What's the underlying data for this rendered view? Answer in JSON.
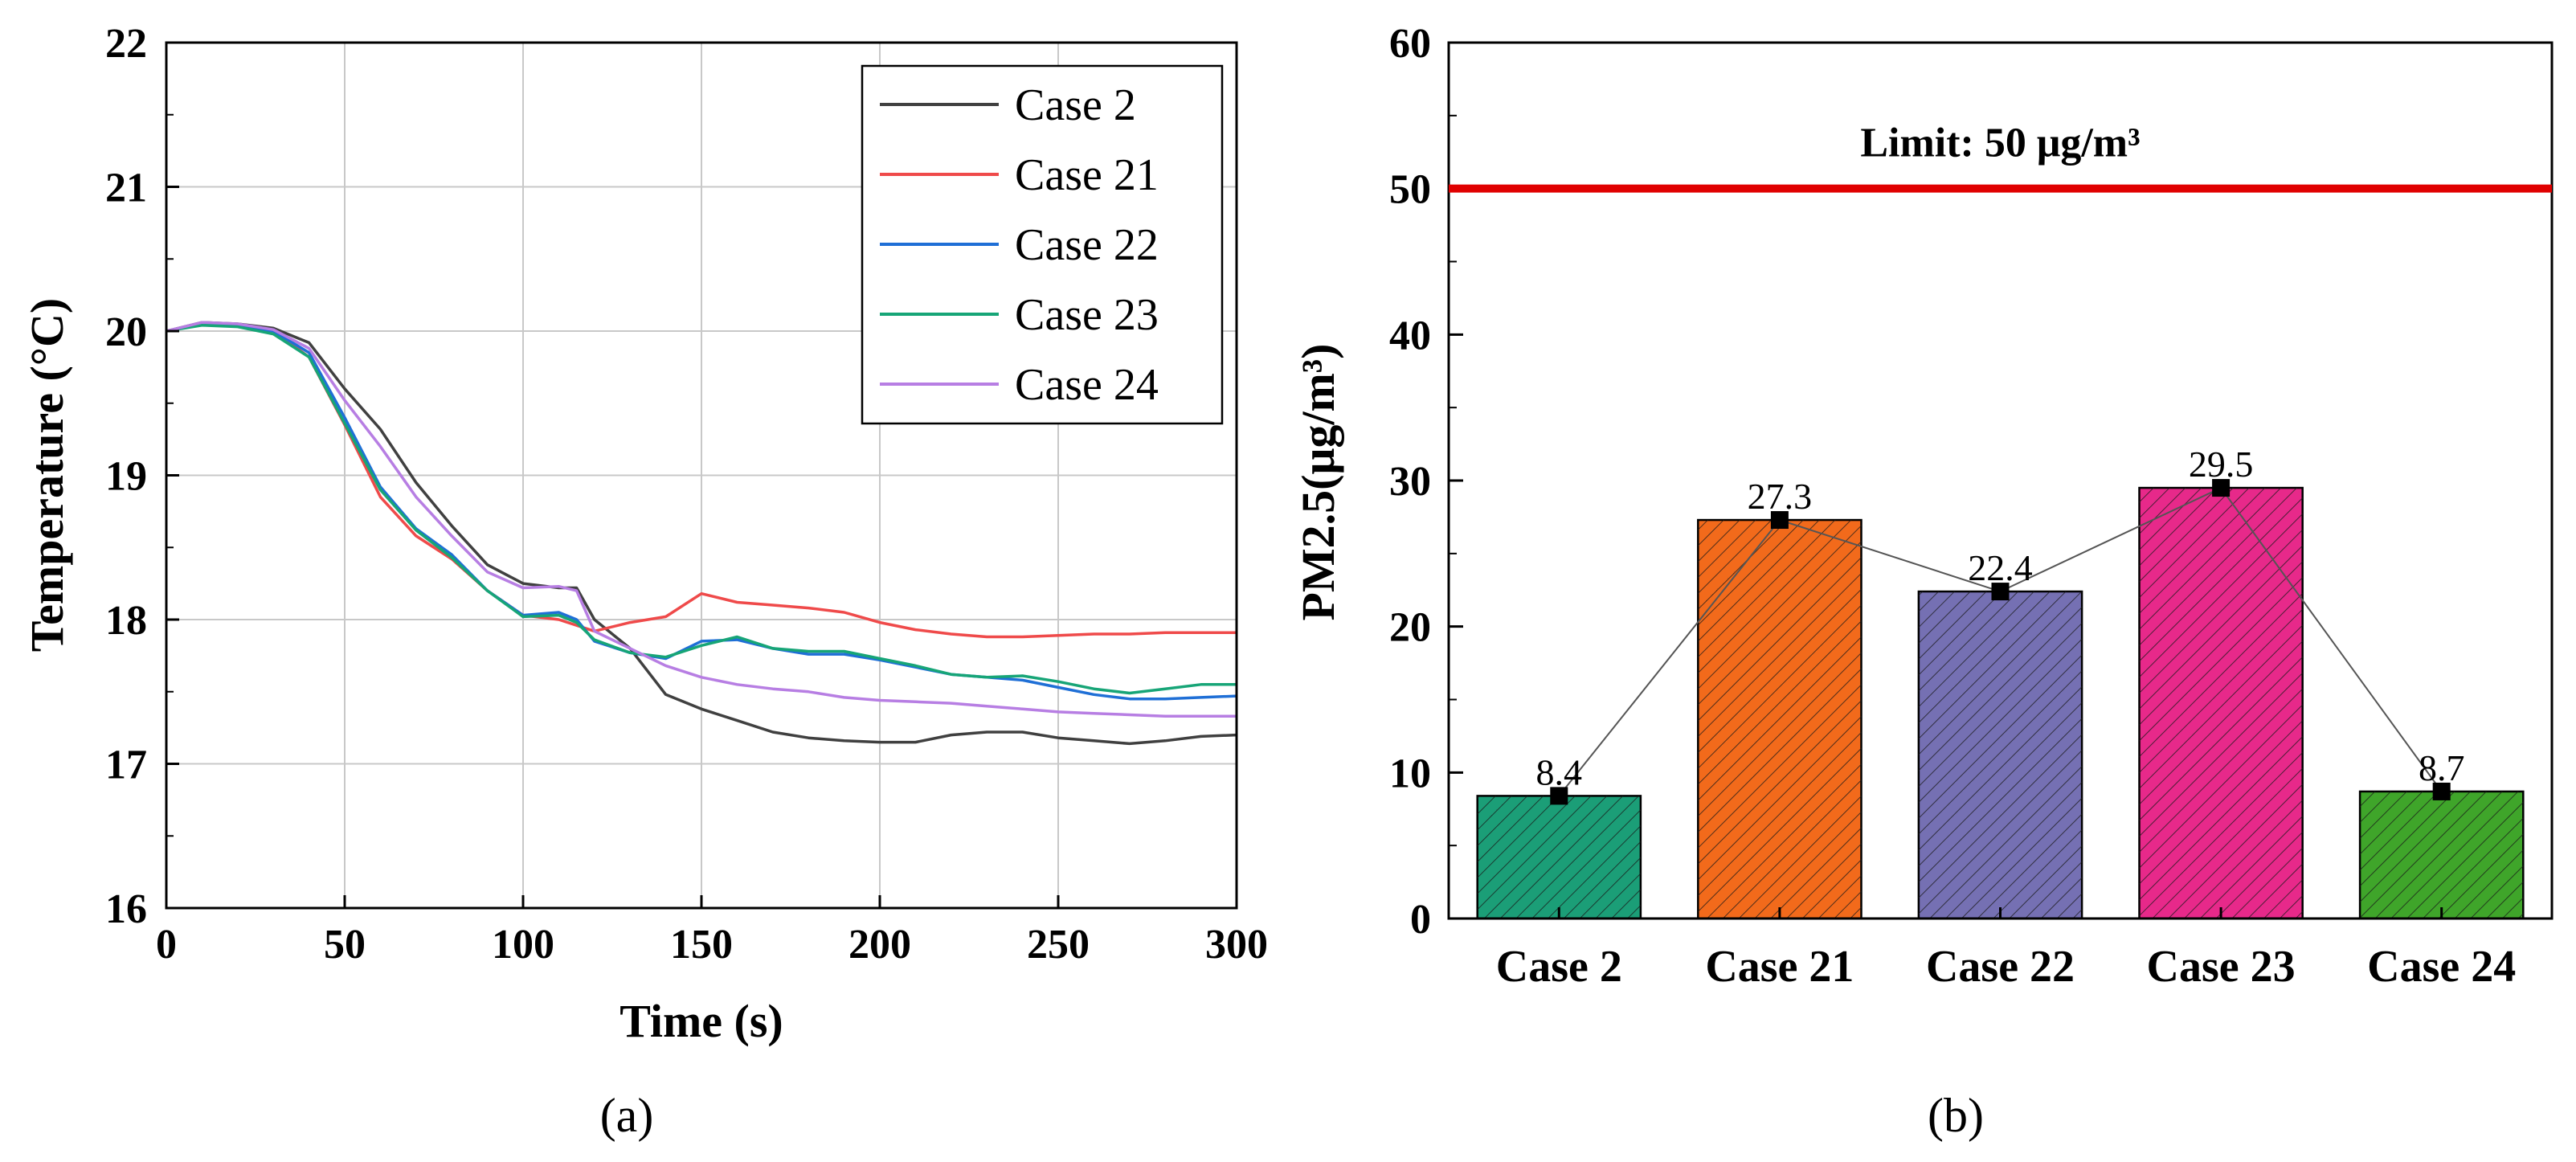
{
  "chart_data": [
    {
      "panel_label": "(a)",
      "type": "line",
      "xlabel": "Time (s)",
      "ylabel": "Temperature (°C)",
      "xlim": [
        0,
        300
      ],
      "ylim": [
        16,
        22
      ],
      "x_ticks": [
        "0",
        "50",
        "100",
        "150",
        "200",
        "250",
        "300"
      ],
      "y_ticks": [
        "16",
        "17",
        "18",
        "19",
        "20",
        "21",
        "22"
      ],
      "grid": true,
      "legend_position": "top-right",
      "series": [
        {
          "name": "Case 2",
          "color": "#404040",
          "points": [
            [
              0,
              20.0
            ],
            [
              10,
              20.06
            ],
            [
              20,
              20.05
            ],
            [
              30,
              20.02
            ],
            [
              40,
              19.92
            ],
            [
              50,
              19.6
            ],
            [
              60,
              19.32
            ],
            [
              70,
              18.95
            ],
            [
              80,
              18.65
            ],
            [
              90,
              18.38
            ],
            [
              100,
              18.25
            ],
            [
              110,
              18.22
            ],
            [
              115,
              18.22
            ],
            [
              120,
              18.0
            ],
            [
              130,
              17.8
            ],
            [
              140,
              17.48
            ],
            [
              150,
              17.38
            ],
            [
              160,
              17.3
            ],
            [
              170,
              17.22
            ],
            [
              180,
              17.18
            ],
            [
              190,
              17.16
            ],
            [
              200,
              17.15
            ],
            [
              210,
              17.15
            ],
            [
              220,
              17.2
            ],
            [
              230,
              17.22
            ],
            [
              240,
              17.22
            ],
            [
              250,
              17.18
            ],
            [
              260,
              17.16
            ],
            [
              270,
              17.14
            ],
            [
              280,
              17.16
            ],
            [
              290,
              17.19
            ],
            [
              300,
              17.2
            ]
          ]
        },
        {
          "name": "Case 21",
          "color": "#ef4a4a",
          "points": [
            [
              0,
              20.0
            ],
            [
              10,
              20.05
            ],
            [
              20,
              20.04
            ],
            [
              30,
              20.0
            ],
            [
              40,
              19.82
            ],
            [
              50,
              19.35
            ],
            [
              60,
              18.85
            ],
            [
              70,
              18.58
            ],
            [
              80,
              18.42
            ],
            [
              90,
              18.2
            ],
            [
              100,
              18.03
            ],
            [
              110,
              18.0
            ],
            [
              120,
              17.92
            ],
            [
              130,
              17.98
            ],
            [
              140,
              18.02
            ],
            [
              150,
              18.18
            ],
            [
              160,
              18.12
            ],
            [
              170,
              18.1
            ],
            [
              180,
              18.08
            ],
            [
              190,
              18.05
            ],
            [
              200,
              17.98
            ],
            [
              210,
              17.93
            ],
            [
              220,
              17.9
            ],
            [
              230,
              17.88
            ],
            [
              240,
              17.88
            ],
            [
              250,
              17.89
            ],
            [
              260,
              17.9
            ],
            [
              270,
              17.9
            ],
            [
              280,
              17.91
            ],
            [
              290,
              17.91
            ],
            [
              300,
              17.91
            ]
          ]
        },
        {
          "name": "Case 22",
          "color": "#1f6fd6",
          "points": [
            [
              0,
              20.0
            ],
            [
              10,
              20.05
            ],
            [
              20,
              20.04
            ],
            [
              30,
              20.0
            ],
            [
              40,
              19.85
            ],
            [
              50,
              19.4
            ],
            [
              60,
              18.92
            ],
            [
              70,
              18.63
            ],
            [
              80,
              18.45
            ],
            [
              90,
              18.2
            ],
            [
              100,
              18.03
            ],
            [
              110,
              18.05
            ],
            [
              115,
              18.0
            ],
            [
              120,
              17.85
            ],
            [
              130,
              17.77
            ],
            [
              140,
              17.73
            ],
            [
              150,
              17.85
            ],
            [
              160,
              17.86
            ],
            [
              170,
              17.8
            ],
            [
              180,
              17.76
            ],
            [
              190,
              17.76
            ],
            [
              200,
              17.72
            ],
            [
              210,
              17.67
            ],
            [
              220,
              17.62
            ],
            [
              230,
              17.6
            ],
            [
              240,
              17.58
            ],
            [
              250,
              17.53
            ],
            [
              260,
              17.48
            ],
            [
              270,
              17.45
            ],
            [
              280,
              17.45
            ],
            [
              290,
              17.46
            ],
            [
              300,
              17.47
            ]
          ]
        },
        {
          "name": "Case 23",
          "color": "#17a577",
          "points": [
            [
              0,
              20.0
            ],
            [
              10,
              20.04
            ],
            [
              20,
              20.03
            ],
            [
              30,
              19.98
            ],
            [
              40,
              19.82
            ],
            [
              50,
              19.36
            ],
            [
              60,
              18.9
            ],
            [
              70,
              18.62
            ],
            [
              80,
              18.43
            ],
            [
              90,
              18.2
            ],
            [
              100,
              18.02
            ],
            [
              110,
              18.03
            ],
            [
              115,
              17.98
            ],
            [
              120,
              17.86
            ],
            [
              130,
              17.77
            ],
            [
              140,
              17.74
            ],
            [
              150,
              17.82
            ],
            [
              160,
              17.88
            ],
            [
              170,
              17.8
            ],
            [
              180,
              17.78
            ],
            [
              190,
              17.78
            ],
            [
              200,
              17.73
            ],
            [
              210,
              17.68
            ],
            [
              220,
              17.62
            ],
            [
              230,
              17.6
            ],
            [
              240,
              17.61
            ],
            [
              250,
              17.57
            ],
            [
              260,
              17.52
            ],
            [
              270,
              17.49
            ],
            [
              280,
              17.52
            ],
            [
              290,
              17.55
            ],
            [
              300,
              17.55
            ]
          ]
        },
        {
          "name": "Case 24",
          "color": "#b77ee3",
          "points": [
            [
              0,
              20.0
            ],
            [
              10,
              20.06
            ],
            [
              20,
              20.05
            ],
            [
              30,
              20.01
            ],
            [
              40,
              19.88
            ],
            [
              50,
              19.52
            ],
            [
              60,
              19.2
            ],
            [
              70,
              18.85
            ],
            [
              80,
              18.58
            ],
            [
              90,
              18.33
            ],
            [
              100,
              18.22
            ],
            [
              110,
              18.23
            ],
            [
              115,
              18.2
            ],
            [
              120,
              17.92
            ],
            [
              130,
              17.8
            ],
            [
              140,
              17.68
            ],
            [
              150,
              17.6
            ],
            [
              160,
              17.55
            ],
            [
              170,
              17.52
            ],
            [
              180,
              17.5
            ],
            [
              190,
              17.46
            ],
            [
              200,
              17.44
            ],
            [
              210,
              17.43
            ],
            [
              220,
              17.42
            ],
            [
              230,
              17.4
            ],
            [
              240,
              17.38
            ],
            [
              250,
              17.36
            ],
            [
              260,
              17.35
            ],
            [
              270,
              17.34
            ],
            [
              280,
              17.33
            ],
            [
              290,
              17.33
            ],
            [
              300,
              17.33
            ]
          ]
        }
      ]
    },
    {
      "panel_label": "(b)",
      "type": "bar",
      "xlabel": "",
      "ylabel": "PM2.5(μg/m³)",
      "ylim": [
        0,
        60
      ],
      "y_ticks": [
        "0",
        "10",
        "20",
        "30",
        "40",
        "50",
        "60"
      ],
      "categories": [
        "Case 2",
        "Case 21",
        "Case 22",
        "Case 23",
        "Case 24"
      ],
      "values": [
        8.4,
        27.3,
        22.4,
        29.5,
        8.7
      ],
      "value_labels": [
        "8.4",
        "27.3",
        "22.4",
        "29.5",
        "8.7"
      ],
      "bar_colors": [
        "#1b9e77",
        "#f26a1b",
        "#7570b3",
        "#e7298a",
        "#3fa52a"
      ],
      "limit_line": {
        "value": 50,
        "label": "Limit: 50 μg/m³",
        "color": "#e00000"
      },
      "connecting_line": true
    }
  ]
}
